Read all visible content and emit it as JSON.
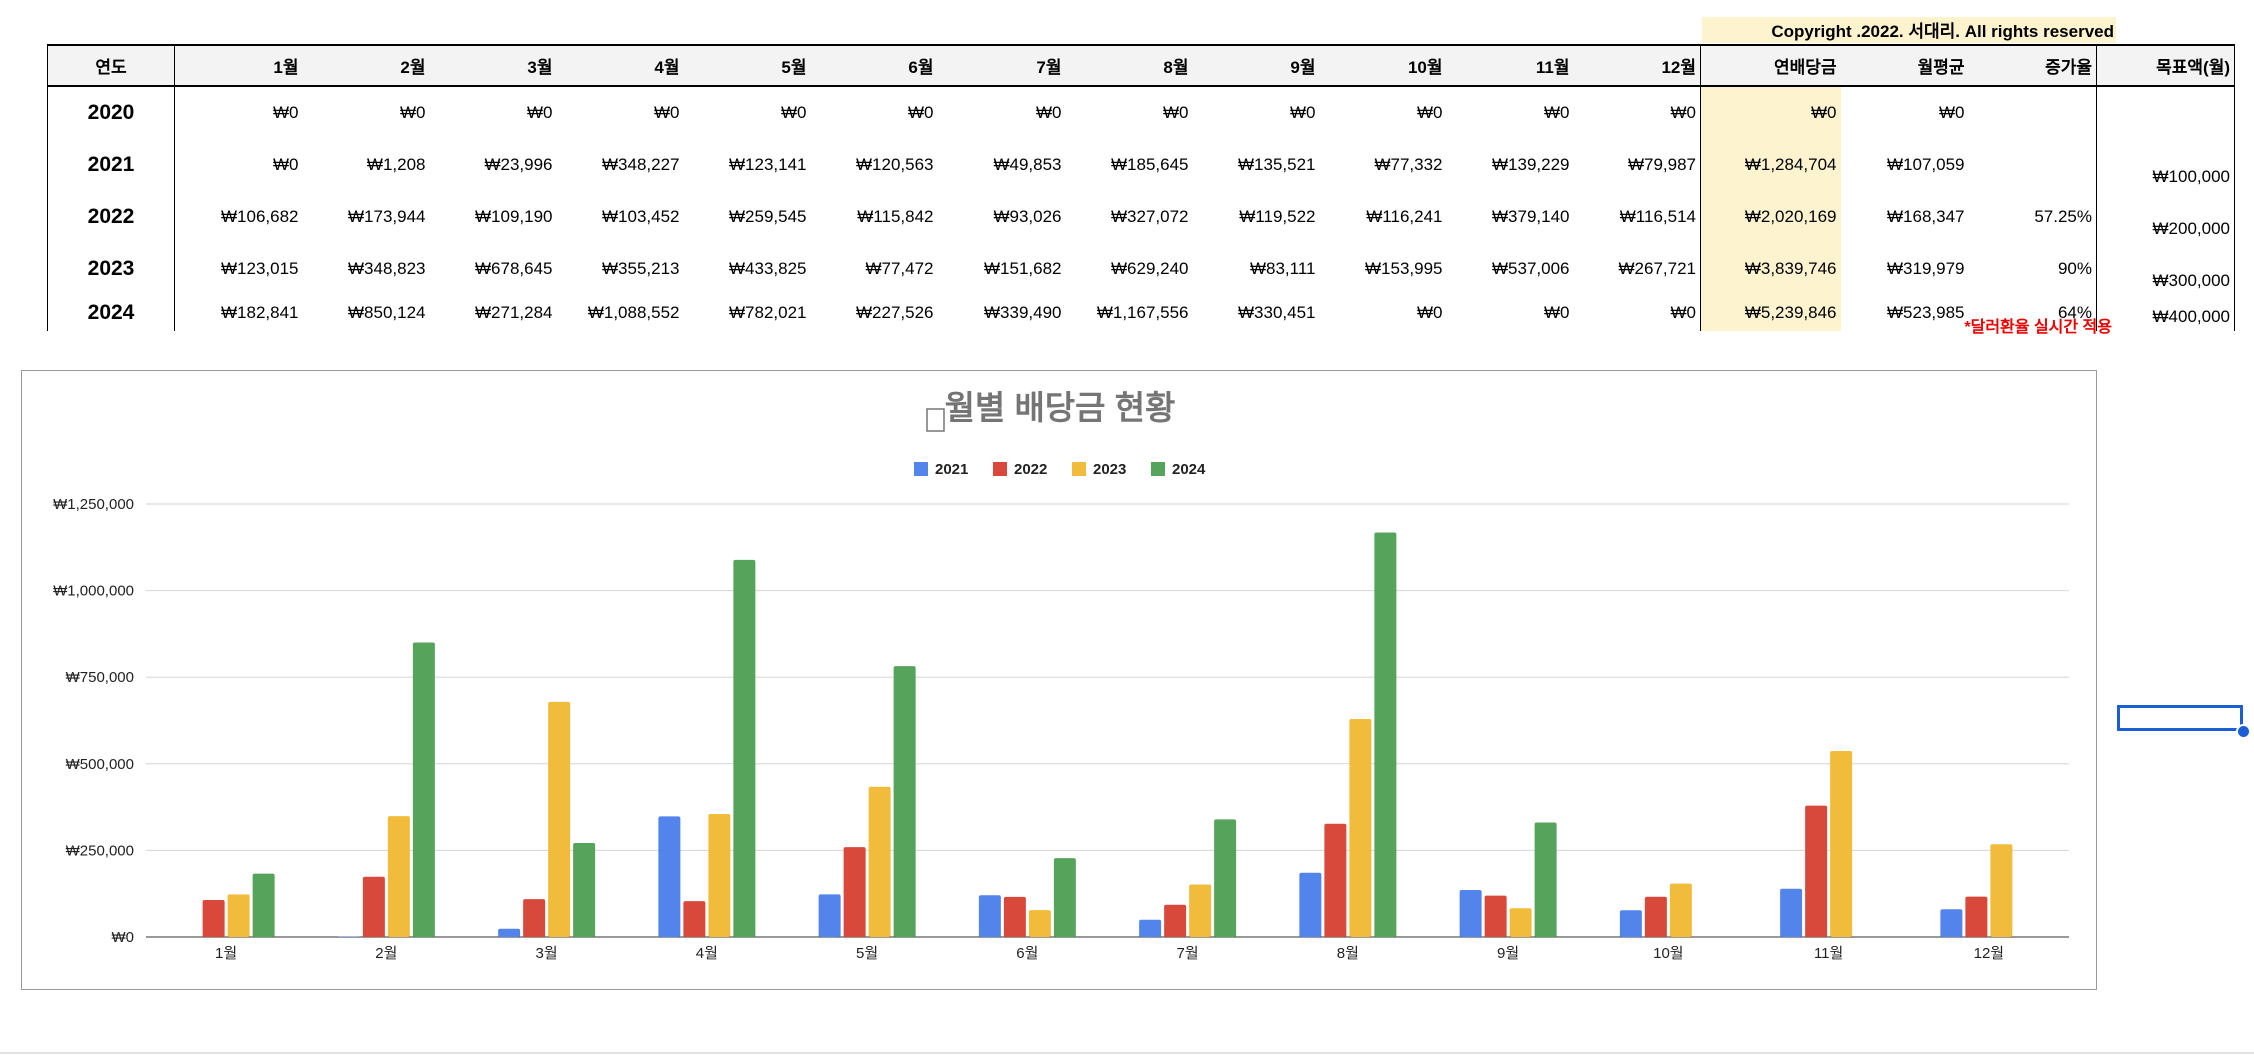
{
  "copyright": "Copyright .2022. 서대리. All rights reserved",
  "table": {
    "headers": [
      "연도",
      "1월",
      "2월",
      "3월",
      "4월",
      "5월",
      "6월",
      "7월",
      "8월",
      "9월",
      "10월",
      "11월",
      "12월",
      "연배당금",
      "월평균",
      "증가율",
      "목표액(월)"
    ],
    "rows": [
      {
        "year": "2020",
        "months": [
          "₩0",
          "₩0",
          "₩0",
          "₩0",
          "₩0",
          "₩0",
          "₩0",
          "₩0",
          "₩0",
          "₩0",
          "₩0",
          "₩0"
        ],
        "annual": "₩0",
        "avg": "₩0",
        "growth": "",
        "target": ""
      },
      {
        "year": "2021",
        "months": [
          "₩0",
          "₩1,208",
          "₩23,996",
          "₩348,227",
          "₩123,141",
          "₩120,563",
          "₩49,853",
          "₩185,645",
          "₩135,521",
          "₩77,332",
          "₩139,229",
          "₩79,987"
        ],
        "annual": "₩1,284,704",
        "avg": "₩107,059",
        "growth": "",
        "target": "₩100,000"
      },
      {
        "year": "2022",
        "months": [
          "₩106,682",
          "₩173,944",
          "₩109,190",
          "₩103,452",
          "₩259,545",
          "₩115,842",
          "₩93,026",
          "₩327,072",
          "₩119,522",
          "₩116,241",
          "₩379,140",
          "₩116,514"
        ],
        "annual": "₩2,020,169",
        "avg": "₩168,347",
        "growth": "57.25%",
        "target": "₩200,000"
      },
      {
        "year": "2023",
        "months": [
          "₩123,015",
          "₩348,823",
          "₩678,645",
          "₩355,213",
          "₩433,825",
          "₩77,472",
          "₩151,682",
          "₩629,240",
          "₩83,111",
          "₩153,995",
          "₩537,006",
          "₩267,721"
        ],
        "annual": "₩3,839,746",
        "avg": "₩319,979",
        "growth": "90%",
        "target": "₩300,000"
      },
      {
        "year": "2024",
        "months": [
          "₩182,841",
          "₩850,124",
          "₩271,284",
          "₩1,088,552",
          "₩782,021",
          "₩227,526",
          "₩339,490",
          "₩1,167,556",
          "₩330,451",
          "₩0",
          "₩0",
          "₩0"
        ],
        "annual": "₩5,239,846",
        "avg": "₩523,985",
        "growth": "64%",
        "target": "₩400,000"
      }
    ]
  },
  "note": "*달러환율 실시간 적용",
  "chart_data": {
    "type": "bar",
    "title": "월별 배당금 현황",
    "categories": [
      "1월",
      "2월",
      "3월",
      "4월",
      "5월",
      "6월",
      "7월",
      "8월",
      "9월",
      "10월",
      "11월",
      "12월"
    ],
    "series": [
      {
        "name": "2021",
        "color": "#5384ec",
        "values": [
          0,
          1208,
          23996,
          348227,
          123141,
          120563,
          49853,
          185645,
          135521,
          77332,
          139229,
          79987
        ]
      },
      {
        "name": "2022",
        "color": "#d8493c",
        "values": [
          106682,
          173944,
          109190,
          103452,
          259545,
          115842,
          93026,
          327072,
          119522,
          116241,
          379140,
          116514
        ]
      },
      {
        "name": "2023",
        "color": "#f1bc3b",
        "values": [
          123015,
          348823,
          678645,
          355213,
          433825,
          77472,
          151682,
          629240,
          83111,
          153995,
          537006,
          267721
        ]
      },
      {
        "name": "2024",
        "color": "#56a45c",
        "values": [
          182841,
          850124,
          271284,
          1088552,
          782021,
          227526,
          339490,
          1167556,
          330451,
          0,
          0,
          0
        ]
      }
    ],
    "yticks": [
      0,
      250000,
      500000,
      750000,
      1000000,
      1250000
    ],
    "ytick_labels": [
      "₩0",
      "₩250,000",
      "₩500,000",
      "₩750,000",
      "₩1,000,000",
      "₩1,250,000"
    ],
    "ylim": [
      0,
      1250000
    ],
    "legend_position": "top-center",
    "grid": true
  }
}
